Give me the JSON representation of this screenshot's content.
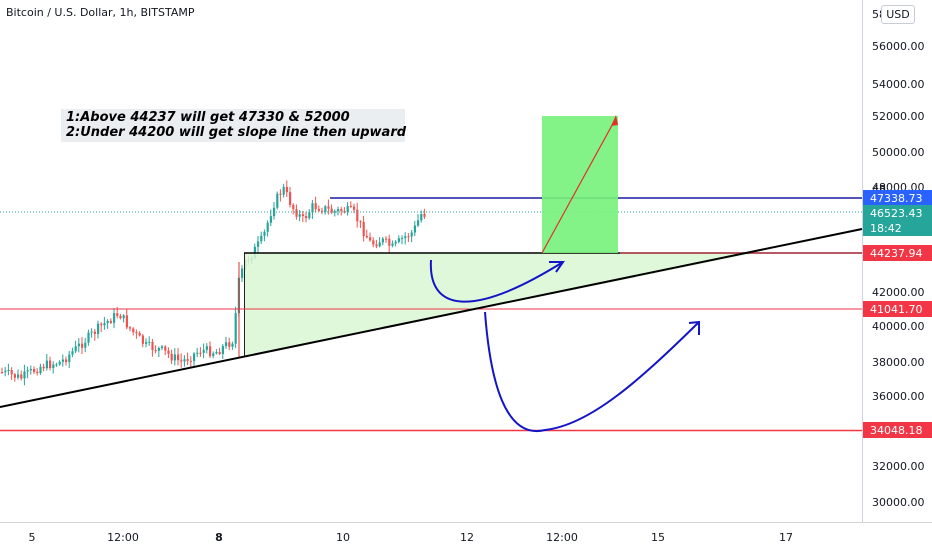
{
  "header": {
    "title": "Bitcoin / U.S. Dollar, 1h, BITSTAMP",
    "currency_button": "USD"
  },
  "annotation": {
    "line1": "1:Above 44237 will get 47330 & 52000",
    "line2": "2:Under 44200 will get slope line then upward"
  },
  "price_axis": {
    "ticks": [
      "56000.00",
      "54000.00",
      "52000.00",
      "50000.00",
      "48000.00",
      "46000.00",
      "44000.00",
      "42000.00",
      "40000.00",
      "38000.00",
      "36000.00",
      "34000.00",
      "32000.00",
      "30000.00"
    ],
    "ticks_partial": [
      "58",
      "48",
      "46"
    ]
  },
  "time_axis": {
    "ticks": [
      "5",
      "12:00",
      "8",
      "10",
      "12",
      "12:00",
      "15",
      "17"
    ]
  },
  "price_labels": [
    {
      "value": "47338.73",
      "color": "#2962ff"
    },
    {
      "value": "46523.43",
      "color": "#26a69a"
    },
    {
      "value": "18:42",
      "color": "#26a69a"
    },
    {
      "value": "44237.94",
      "color": "#f23645"
    },
    {
      "value": "41041.70",
      "color": "#f23645"
    },
    {
      "value": "34048.18",
      "color": "#f23645"
    }
  ],
  "chart_data": {
    "type": "candlestick",
    "symbol": "Bitcoin / U.S. Dollar",
    "interval": "1h",
    "exchange": "BITSTAMP",
    "y_range": [
      29000,
      58000
    ],
    "last_price": 46523.43,
    "horizontal_levels": [
      {
        "price": 47338.73,
        "color": "#1a1aa6"
      },
      {
        "price": 44237.94,
        "color": "#000000"
      },
      {
        "price": 41041.7,
        "color": "#f23645"
      },
      {
        "price": 34048.18,
        "color": "#f23645"
      }
    ],
    "target_zone": {
      "from": 44237.94,
      "to": 52000,
      "color": "#77f27a"
    },
    "colors": {
      "up": "#26a69a",
      "down": "#ef5350",
      "trendline": "#000000",
      "arrows": "#1515c8",
      "target_arrow": "#e0302a",
      "triangle_fill": "#d9f7d3"
    }
  }
}
